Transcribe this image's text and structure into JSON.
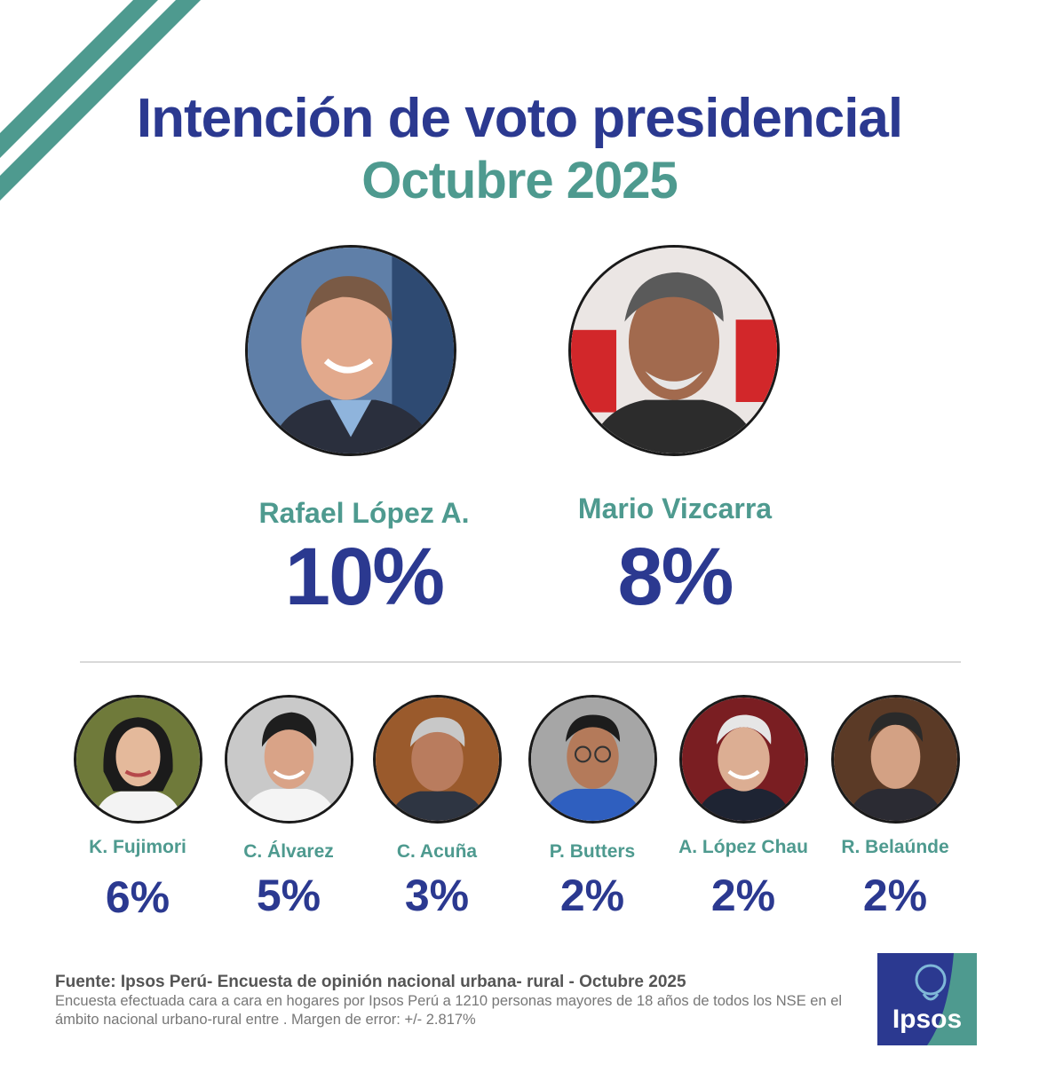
{
  "header": {
    "title": "Intención de voto presidencial",
    "subtitle": "Octubre 2025"
  },
  "colors": {
    "primary": "#2b3990",
    "accent": "#4e9a8f",
    "text_gray": "#777777"
  },
  "top_candidates": [
    {
      "name": "Rafael López A.",
      "pct": "10%"
    },
    {
      "name": "Mario Vizcarra",
      "pct": "8%"
    }
  ],
  "other_candidates": [
    {
      "name": "K. Fujimori",
      "pct": "6%"
    },
    {
      "name": "C. Álvarez",
      "pct": "5%"
    },
    {
      "name": "C. Acuña",
      "pct": "3%"
    },
    {
      "name": "P. Butters",
      "pct": "2%"
    },
    {
      "name": "A.  López Chau",
      "pct": "2%"
    },
    {
      "name": "R. Belaúnde",
      "pct": "2%"
    }
  ],
  "chart_data": {
    "type": "table",
    "title": "Intención de voto presidencial",
    "subtitle": "Octubre 2025",
    "categories": [
      "Rafael López A.",
      "Mario Vizcarra",
      "K. Fujimori",
      "C. Álvarez",
      "C. Acuña",
      "P. Butters",
      "A.  López Chau",
      "R. Belaúnde"
    ],
    "values": [
      10,
      8,
      6,
      5,
      3,
      2,
      2,
      2
    ],
    "unit": "%"
  },
  "footer": {
    "source_title": "Fuente: Ipsos Perú- Encuesta de opinión nacional urbana- rural - Octubre 2025",
    "source_note": "Encuesta efectuada cara a cara en hogares por Ipsos Perú a 1210 personas mayores de 18 años de todos los NSE en el ámbito nacional urbano-rural entre . Margen de error:  +/- 2.817%",
    "logo_text": "Ipsos"
  }
}
